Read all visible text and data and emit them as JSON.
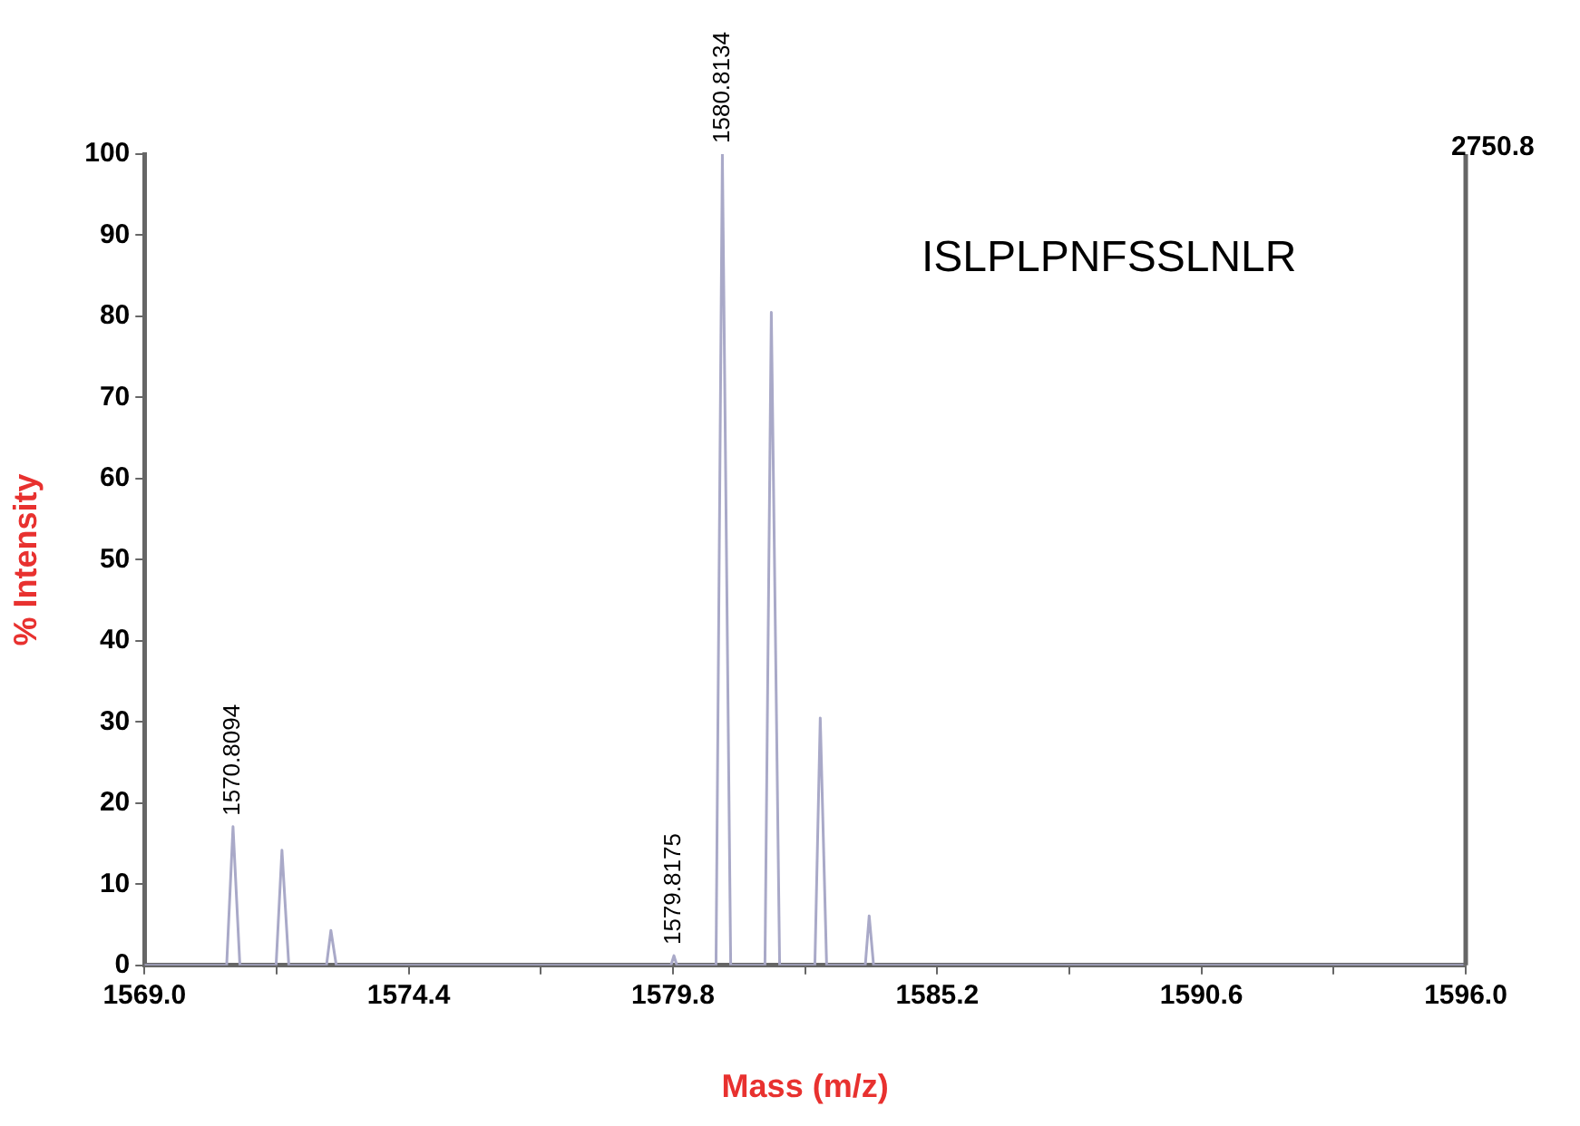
{
  "chart_data": {
    "type": "line",
    "xlabel": "Mass (m/z)",
    "ylabel": "% Intensity",
    "xlim": [
      1569,
      1596
    ],
    "xticks": [
      {
        "value": 1569,
        "label": "1569.0"
      },
      {
        "value": 1571.7,
        "label": null
      },
      {
        "value": 1574.4,
        "label": "1574.4"
      },
      {
        "value": 1577.1,
        "label": null
      },
      {
        "value": 1579.8,
        "label": "1579.8"
      },
      {
        "value": 1582.5,
        "label": null
      },
      {
        "value": 1585.2,
        "label": "1585.2"
      },
      {
        "value": 1587.9,
        "label": null
      },
      {
        "value": 1590.6,
        "label": "1590.6"
      },
      {
        "value": 1593.3,
        "label": null
      },
      {
        "value": 1596,
        "label": "1596.0"
      }
    ],
    "ylim": [
      0,
      100
    ],
    "yticks": [
      0,
      10,
      20,
      30,
      40,
      50,
      60,
      70,
      80,
      90,
      100
    ],
    "grid": false,
    "legend": false,
    "marker": "none",
    "line_style": "solid",
    "series": [
      {
        "color": "#a9a9c8",
        "x": [
          1569,
          1570.68,
          1570.81,
          1570.95,
          1571.69,
          1571.81,
          1571.95,
          1572.72,
          1572.81,
          1572.92,
          1579.76,
          1579.82,
          1579.88,
          1580.68,
          1580.81,
          1580.98,
          1581.68,
          1581.81,
          1581.98,
          1582.7,
          1582.81,
          1582.94,
          1583.73,
          1583.81,
          1583.9,
          1596
        ],
        "values": [
          0,
          0,
          17.1,
          0,
          0,
          14.2,
          0,
          0,
          4.3,
          0,
          0,
          1.2,
          0,
          0,
          100,
          0,
          0,
          80.5,
          0,
          0,
          30.5,
          0,
          0,
          6.1,
          0,
          0
        ]
      }
    ],
    "annotations": [
      "ISLPLPNFSSLNLR",
      "2750.8",
      {
        "text": "1570.8094",
        "x": 1570.81,
        "y": 17.1
      },
      {
        "text": "1579.8175",
        "x": 1579.82,
        "y": 1.2
      },
      {
        "text": "1580.8134",
        "x": 1580.81,
        "y": 100
      }
    ]
  }
}
